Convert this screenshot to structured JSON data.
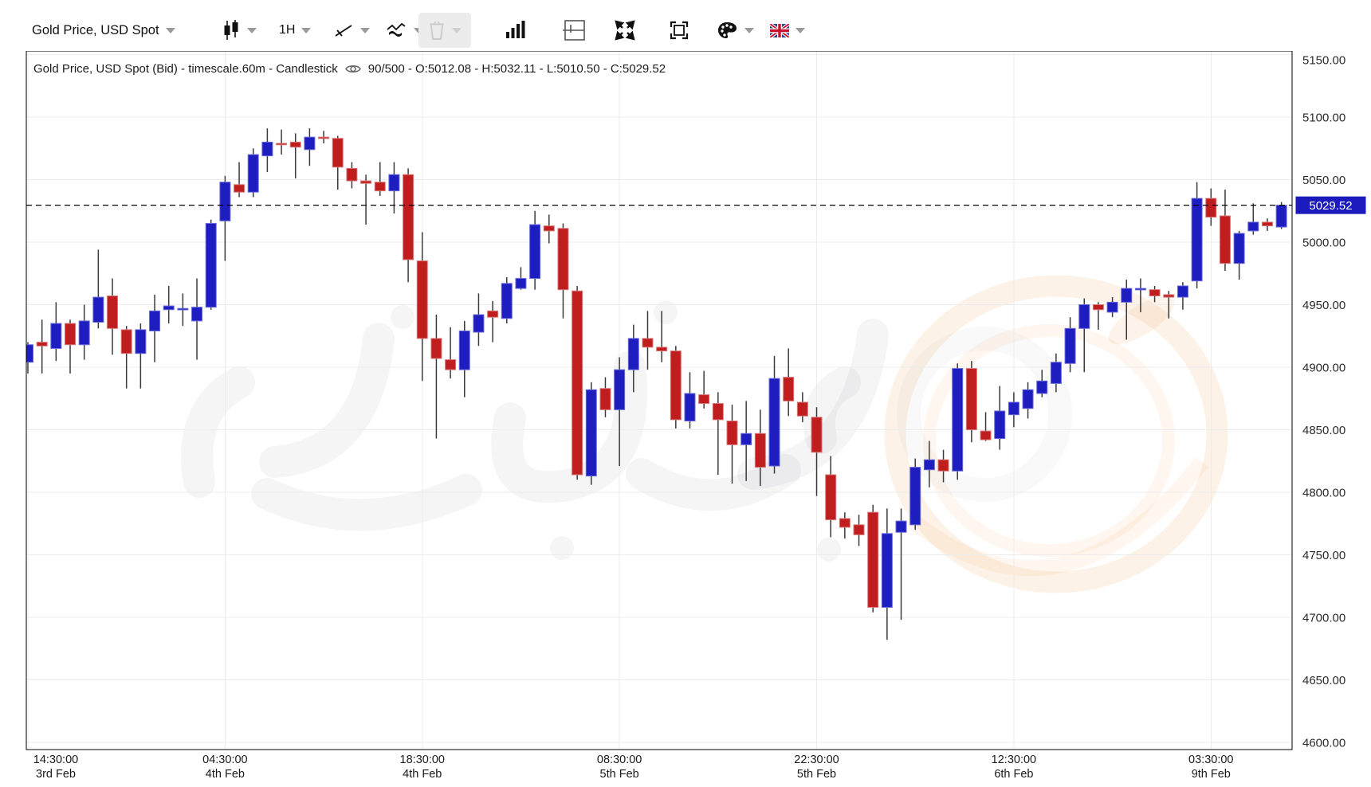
{
  "toolbar": {
    "symbol_selector_label": "Gold Price, USD Spot",
    "timeframe_label": "1H",
    "icons": [
      "candlestick-chart-type-icon",
      "trendline-tool-icon",
      "indicators-icon",
      "trash-icon",
      "volume-bars-icon",
      "grid-settings-icon",
      "fullscreen-icon",
      "snapshot-frame-icon",
      "palette-icon",
      "uk-flag-icon"
    ]
  },
  "legend": {
    "series_title": "Gold Price, USD Spot (Bid) - timescale.60m - Candlestick",
    "ohlc_summary": "90/500 - O:5012.08 - H:5032.11 - L:5010.50 - C:5029.52"
  },
  "price_tag": {
    "value": "5029.52",
    "color": "#1b1bbd"
  },
  "watermark": {
    "text": "زمان اقتصاد"
  },
  "chart_data": {
    "type": "candlestick",
    "title": "Gold Price, USD Spot (Bid)",
    "timescale": "60m",
    "visible_range": "90/500",
    "last_candle": {
      "open": 5012.08,
      "high": 5032.11,
      "low": 5010.5,
      "close": 5029.52
    },
    "ylim": [
      4600,
      5150
    ],
    "price_step": 50,
    "grid": true,
    "up_color": "#1e1ec0",
    "down_color": "#c01e1e",
    "last_price_line": 5029.52,
    "x_axis_labels": [
      {
        "time": "14:30:00",
        "date": "3rd Feb",
        "candle_index": 0
      },
      {
        "time": "04:30:00",
        "date": "4th Feb",
        "candle_index": 14
      },
      {
        "time": "18:30:00",
        "date": "4th Feb",
        "candle_index": 28
      },
      {
        "time": "08:30:00",
        "date": "5th Feb",
        "candle_index": 42
      },
      {
        "time": "22:30:00",
        "date": "5th Feb",
        "candle_index": 56
      },
      {
        "time": "12:30:00",
        "date": "6th Feb",
        "candle_index": 70
      },
      {
        "time": "03:30:00",
        "date": "9th Feb",
        "candle_index": 84
      }
    ],
    "candles": [
      [
        4904,
        4920,
        4895,
        4918
      ],
      [
        4920,
        4938,
        4895,
        4917
      ],
      [
        4915,
        4952,
        4905,
        4935
      ],
      [
        4935,
        4938,
        4895,
        4918
      ],
      [
        4918,
        4950,
        4906,
        4937
      ],
      [
        4936,
        4994,
        4931,
        4956
      ],
      [
        4957,
        4971,
        4910,
        4931
      ],
      [
        4930,
        4933,
        4883,
        4911
      ],
      [
        4911,
        4935,
        4883,
        4930
      ],
      [
        4929,
        4958,
        4904,
        4945
      ],
      [
        4946,
        4965,
        4935,
        4949
      ],
      [
        4947,
        4959,
        4933,
        4947
      ],
      [
        4937,
        4971,
        4906,
        4948
      ],
      [
        4948,
        5018,
        4946,
        5015
      ],
      [
        5017,
        5053,
        4985,
        5048
      ],
      [
        5046,
        5064,
        5036,
        5040
      ],
      [
        5040,
        5075,
        5036,
        5070
      ],
      [
        5069,
        5091,
        5056,
        5080
      ],
      [
        5079,
        5090,
        5070,
        5078
      ],
      [
        5080,
        5087,
        5051,
        5076
      ],
      [
        5074,
        5091,
        5061,
        5084
      ],
      [
        5084,
        5089,
        5079,
        5083
      ],
      [
        5083,
        5085,
        5042,
        5060
      ],
      [
        5059,
        5064,
        5043,
        5049
      ],
      [
        5049,
        5054,
        5014,
        5047
      ],
      [
        5048,
        5064,
        5037,
        5041
      ],
      [
        5041,
        5064,
        5023,
        5054
      ],
      [
        5054,
        5059,
        4968,
        4986
      ],
      [
        4985,
        5008,
        4889,
        4923
      ],
      [
        4923,
        4942,
        4843,
        4907
      ],
      [
        4906,
        4932,
        4891,
        4898
      ],
      [
        4898,
        4937,
        4876,
        4929
      ],
      [
        4928,
        4959,
        4917,
        4942
      ],
      [
        4945,
        4953,
        4920,
        4940
      ],
      [
        4939,
        4972,
        4935,
        4967
      ],
      [
        4963,
        4980,
        4962,
        4971
      ],
      [
        4971,
        5025,
        4962,
        5014
      ],
      [
        5013,
        5022,
        4999,
        5009
      ],
      [
        5011,
        5015,
        4939,
        4962
      ],
      [
        4961,
        4965,
        4810,
        4814
      ],
      [
        4813,
        4888,
        4806,
        4882
      ],
      [
        4883,
        4892,
        4860,
        4866
      ],
      [
        4866,
        4908,
        4821,
        4898
      ],
      [
        4898,
        4934,
        4880,
        4923
      ],
      [
        4923,
        4945,
        4898,
        4916
      ],
      [
        4916,
        4945,
        4904,
        4913
      ],
      [
        4913,
        4917,
        4851,
        4858
      ],
      [
        4857,
        4896,
        4851,
        4879
      ],
      [
        4878,
        4897,
        4867,
        4871
      ],
      [
        4871,
        4880,
        4814,
        4858
      ],
      [
        4857,
        4870,
        4807,
        4838
      ],
      [
        4838,
        4873,
        4809,
        4847
      ],
      [
        4847,
        4866,
        4805,
        4820
      ],
      [
        4821,
        4909,
        4815,
        4891
      ],
      [
        4892,
        4915,
        4861,
        4873
      ],
      [
        4872,
        4880,
        4856,
        4861
      ],
      [
        4860,
        4868,
        4797,
        4832
      ],
      [
        4814,
        4829,
        4764,
        4778
      ],
      [
        4779,
        4784,
        4763,
        4772
      ],
      [
        4774,
        4782,
        4757,
        4766
      ],
      [
        4784,
        4790,
        4704,
        4708
      ],
      [
        4708,
        4787,
        4682,
        4767
      ],
      [
        4768,
        4787,
        4698,
        4777
      ],
      [
        4774,
        4827,
        4770,
        4820
      ],
      [
        4818,
        4841,
        4804,
        4826
      ],
      [
        4826,
        4834,
        4808,
        4817
      ],
      [
        4817,
        4903,
        4810,
        4899
      ],
      [
        4899,
        4905,
        4840,
        4850
      ],
      [
        4849,
        4864,
        4841,
        4842
      ],
      [
        4843,
        4885,
        4834,
        4865
      ],
      [
        4862,
        4880,
        4852,
        4872
      ],
      [
        4867,
        4888,
        4859,
        4882
      ],
      [
        4879,
        4898,
        4876,
        4889
      ],
      [
        4887,
        4911,
        4880,
        4904
      ],
      [
        4903,
        4940,
        4896,
        4931
      ],
      [
        4931,
        4955,
        4896,
        4950
      ],
      [
        4950,
        4952,
        4930,
        4946
      ],
      [
        4944,
        4956,
        4940,
        4952
      ],
      [
        4952,
        4970,
        4922,
        4963
      ],
      [
        4963,
        4971,
        4944,
        4963
      ],
      [
        4962,
        4965,
        4952,
        4957
      ],
      [
        4958,
        4961,
        4939,
        4956
      ],
      [
        4956,
        4968,
        4946,
        4965
      ],
      [
        4969,
        5048,
        4963,
        5035
      ],
      [
        5035,
        5043,
        5013,
        5020
      ],
      [
        5021,
        5042,
        4977,
        4983
      ],
      [
        4983,
        5009,
        4970,
        5007
      ],
      [
        5009,
        5031,
        5006,
        5016
      ],
      [
        5016,
        5019,
        5009,
        5013
      ],
      [
        5012.08,
        5032.11,
        5010.5,
        5029.52
      ]
    ]
  }
}
